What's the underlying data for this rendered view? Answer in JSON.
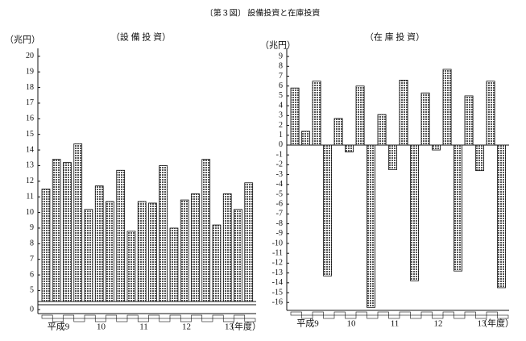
{
  "title": "〔第３図〕 設備投資と在庫投資",
  "chart_data": [
    {
      "type": "bar",
      "title": "（設 備 投 資）",
      "y_label": "（兆円）",
      "x_label": "（年度）",
      "groups": [
        "平成9",
        "10",
        "11",
        "12",
        "13"
      ],
      "values": [
        11.5,
        13.4,
        13.2,
        14.4,
        10.2,
        11.7,
        10.7,
        12.7,
        8.8,
        10.7,
        10.6,
        13.0,
        9.0,
        10.8,
        11.2,
        13.4,
        9.2,
        11.2,
        10.2,
        11.9
      ],
      "color": "#b5b5b5",
      "axis_break": true,
      "ylim": [
        4.3,
        20.3
      ],
      "yticks": [
        0,
        5,
        6,
        7,
        8,
        9,
        10,
        11,
        12,
        13,
        14,
        15,
        16,
        17,
        18,
        19,
        20
      ]
    },
    {
      "type": "bar",
      "title": "（在 庫 投 資）",
      "y_label": "（兆円）",
      "x_label": "（年度）",
      "groups": [
        "平成9",
        "10",
        "11",
        "12",
        "13"
      ],
      "values": [
        5.8,
        1.4,
        6.5,
        -13.3,
        2.7,
        -0.7,
        6.0,
        -16.5,
        3.1,
        -2.5,
        6.6,
        -13.8,
        5.3,
        -0.5,
        7.7,
        -12.8,
        5.0,
        -2.6,
        6.5,
        -14.5
      ],
      "color": "#b5b5b5",
      "axis_break": false,
      "ylim": [
        -16.8,
        9.5
      ],
      "yticks": [
        -16,
        -15,
        -14,
        -13,
        -12,
        -11,
        -10,
        -9,
        -8,
        -7,
        -6,
        -5,
        -4,
        -3,
        -2,
        -1,
        0,
        1,
        2,
        3,
        4,
        5,
        6,
        7,
        8,
        9
      ]
    }
  ]
}
